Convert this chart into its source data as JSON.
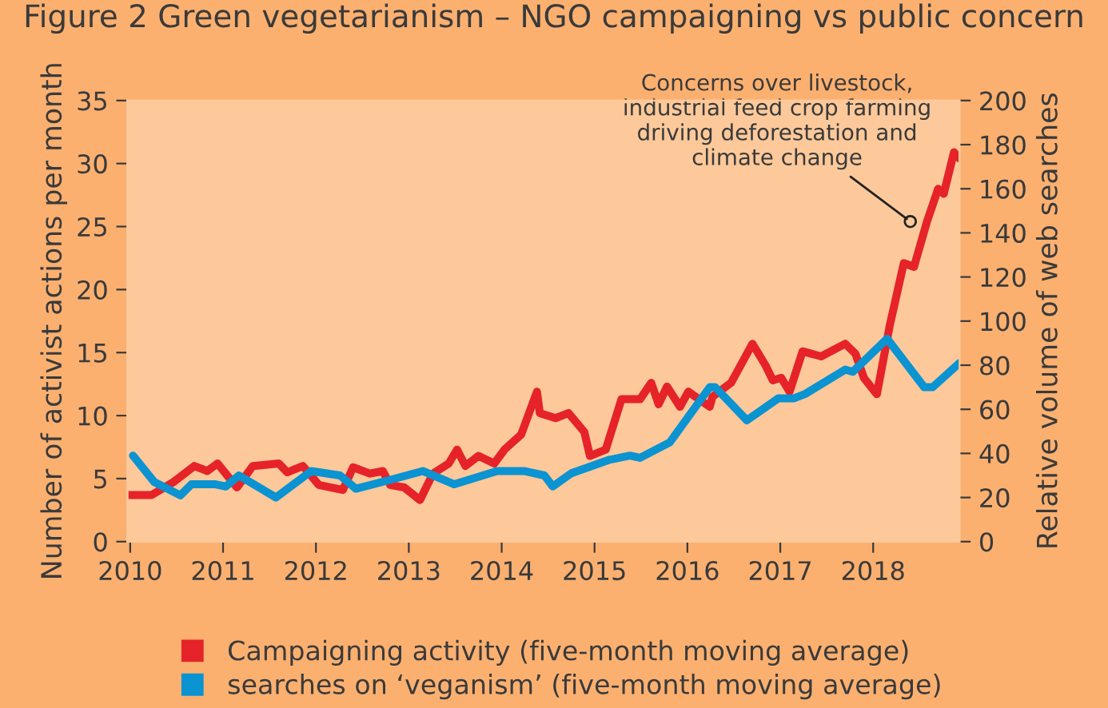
{
  "chart_data": {
    "type": "line",
    "title": "Figure 2 Green vegetarianism – NGO campaigning vs public concern",
    "ylabel": "Number of activist actions per month",
    "y2label": "Relative volume of web searches",
    "xlim": [
      2009.97,
      2018.93
    ],
    "xticks": [
      2010,
      2011,
      2012,
      2013,
      2014,
      2015,
      2016,
      2017,
      2018
    ],
    "ylim": [
      0,
      35
    ],
    "yticks": [
      0,
      5,
      10,
      15,
      20,
      25,
      30,
      35
    ],
    "y2lim": [
      0,
      200
    ],
    "y2ticks": [
      0,
      20,
      40,
      60,
      80,
      100,
      120,
      140,
      160,
      180,
      200
    ],
    "grid": false,
    "legend": "bottom",
    "marker": "none",
    "line_style": "solid",
    "annotations": [
      {
        "text": "Concerns over livestock,\nindustrial feed crop farming\ndriving deforestation and\nclimate change",
        "x": 2018.4,
        "y": 25.4
      }
    ],
    "series": [
      {
        "name": "Campaigning activity (five-month moving average)",
        "color": "#e52329",
        "x": [
          2009.97,
          2010.23,
          2010.46,
          2010.69,
          2010.83,
          2010.94,
          2011.15,
          2011.32,
          2011.6,
          2011.69,
          2011.86,
          2012.03,
          2012.29,
          2012.4,
          2012.58,
          2012.72,
          2012.8,
          2012.95,
          2013.12,
          2013.26,
          2013.43,
          2013.52,
          2013.61,
          2013.75,
          2013.92,
          2014.03,
          2014.21,
          2014.38,
          2014.41,
          2014.58,
          2014.72,
          2014.89,
          2014.95,
          2015.12,
          2015.29,
          2015.49,
          2015.61,
          2015.69,
          2015.78,
          2015.92,
          2016.01,
          2016.24,
          2016.27,
          2016.47,
          2016.7,
          2016.84,
          2016.92,
          2017.01,
          2017.1,
          2017.24,
          2017.44,
          2017.7,
          2017.81,
          2017.9,
          2018.04,
          2018.18,
          2018.33,
          2018.44,
          2018.58,
          2018.7,
          2018.76,
          2018.87,
          2018.93
        ],
        "values": [
          3.7,
          3.7,
          4.7,
          6.0,
          5.6,
          6.2,
          4.3,
          6.0,
          6.2,
          5.5,
          6.0,
          4.5,
          4.1,
          5.9,
          5.4,
          5.6,
          4.5,
          4.3,
          3.3,
          5.4,
          6.2,
          7.3,
          6.0,
          6.8,
          6.2,
          7.3,
          8.5,
          11.9,
          10.2,
          9.8,
          10.2,
          8.7,
          6.8,
          7.3,
          11.3,
          11.3,
          12.6,
          10.9,
          12.3,
          10.7,
          11.9,
          10.7,
          11.5,
          12.6,
          15.7,
          14.0,
          12.8,
          13.0,
          11.9,
          15.1,
          14.7,
          15.7,
          14.9,
          13.0,
          11.7,
          17.2,
          22.1,
          21.8,
          25.4,
          28.0,
          27.6,
          30.9,
          30.4
        ]
      },
      {
        "name": "searches on ‘veganism’ (five-month moving average)",
        "color": "#0b93d2",
        "axis": "y2",
        "x": [
          2010.03,
          2010.26,
          2010.54,
          2010.66,
          2010.92,
          2011.03,
          2011.17,
          2011.57,
          2011.95,
          2012.26,
          2012.43,
          2012.8,
          2013.15,
          2013.49,
          2013.95,
          2014.24,
          2014.46,
          2014.55,
          2014.75,
          2015.15,
          2015.38,
          2015.49,
          2015.81,
          2016.24,
          2016.3,
          2016.64,
          2016.98,
          2017.15,
          2017.27,
          2017.7,
          2017.78,
          2018.15,
          2018.55,
          2018.64,
          2018.93
        ],
        "values": [
          39,
          27,
          21,
          26,
          26,
          25,
          30,
          20,
          32,
          30,
          24,
          28,
          32,
          26,
          32,
          32,
          30,
          25,
          31,
          37,
          39,
          38,
          45,
          70,
          70,
          55,
          65,
          65,
          67,
          78,
          77,
          92,
          70,
          70,
          81
        ]
      }
    ]
  }
}
